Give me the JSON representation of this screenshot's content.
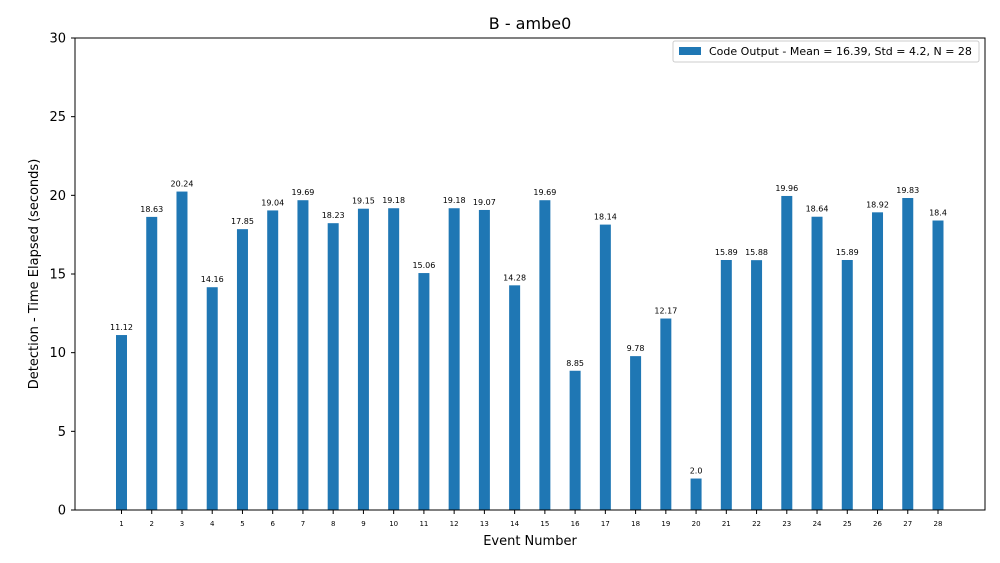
{
  "chart_data": {
    "type": "bar",
    "title": "B - ambe0",
    "xlabel": "Event Number",
    "ylabel": "Detection - Time Elapsed (seconds)",
    "ylim": [
      0,
      30
    ],
    "yticks": [
      0,
      5,
      10,
      15,
      20,
      25,
      30
    ],
    "categories": [
      "1",
      "2",
      "3",
      "4",
      "5",
      "6",
      "7",
      "8",
      "9",
      "10",
      "11",
      "12",
      "13",
      "14",
      "15",
      "16",
      "17",
      "18",
      "19",
      "20",
      "21",
      "22",
      "23",
      "24",
      "25",
      "26",
      "27",
      "28"
    ],
    "series": [
      {
        "name": "Code Output - Mean = 16.39, Std = 4.2, N = 28",
        "color": "#1f77b4",
        "values": [
          11.12,
          18.63,
          20.24,
          14.16,
          17.85,
          19.04,
          19.69,
          18.23,
          19.15,
          19.18,
          15.06,
          19.18,
          19.07,
          14.28,
          19.69,
          8.85,
          18.14,
          9.78,
          12.17,
          2.0,
          15.89,
          15.88,
          19.96,
          18.64,
          15.89,
          18.92,
          19.83,
          18.4
        ],
        "labels": [
          "11.12",
          "18.63",
          "20.24",
          "14.16",
          "17.85",
          "19.04",
          "19.69",
          "18.23",
          "19.15",
          "19.18",
          "15.06",
          "19.18",
          "19.07",
          "14.28",
          "19.69",
          "8.85",
          "18.14",
          "9.78",
          "12.17",
          "2.0",
          "15.89",
          "15.88",
          "19.96",
          "18.64",
          "15.89",
          "18.92",
          "19.83",
          "18.4"
        ]
      }
    ],
    "legend_position": "top-right",
    "grid": false
  }
}
